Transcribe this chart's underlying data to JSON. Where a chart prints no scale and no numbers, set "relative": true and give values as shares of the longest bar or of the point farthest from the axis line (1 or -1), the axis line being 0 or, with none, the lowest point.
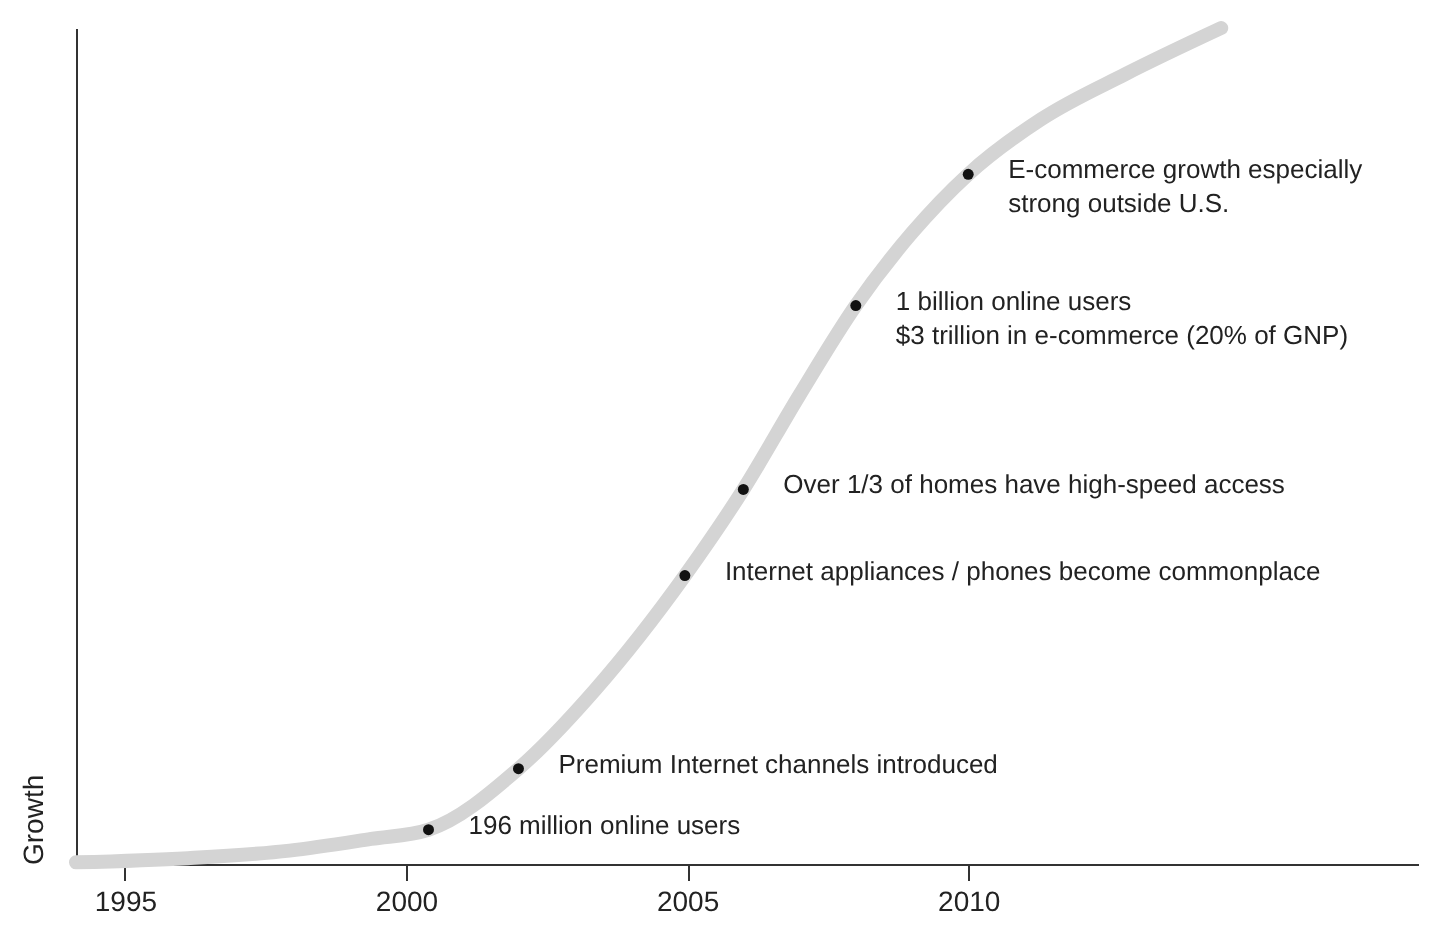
{
  "chart_data": {
    "type": "line",
    "relative": true,
    "ylabel": "Growth",
    "x": [
      1994.13,
      1996.12,
      1997.93,
      1999.38,
      2000.4,
      2002.0,
      2003.37,
      2004.96,
      2006.0,
      2007.0,
      2008.0,
      2009.0,
      2010.0,
      2011.3,
      2012.8,
      2014.5
    ],
    "series": [
      {
        "color": "#d4d4d4",
        "values": [
          0.002,
          0.007,
          0.016,
          0.03,
          0.041,
          0.114,
          0.209,
          0.345,
          0.448,
          0.561,
          0.668,
          0.755,
          0.825,
          0.891,
          0.945,
          1.0
        ]
      }
    ],
    "xlim": [
      1994.13,
      2018.0
    ],
    "xticks": [
      1995,
      2000,
      2005,
      2010
    ],
    "grid": false,
    "line_style": "solid",
    "annotations": [
      {
        "text": "196 million online users",
        "x": 2000.4,
        "y": 0.041
      },
      {
        "text": "Premium Internet channels introduced",
        "x": 2002.0,
        "y": 0.114
      },
      {
        "text": "Internet appliances / phones become commonplace",
        "x": 2004.96,
        "y": 0.345
      },
      {
        "text": "Over 1/3 of homes have high-speed access",
        "x": 2006.0,
        "y": 0.448
      },
      {
        "text": "1 billion online users\n$3 trillion in e-commerce (20% of GNP)",
        "x": 2008.0,
        "y": 0.668
      },
      {
        "text": "E-commerce growth especially\nstrong outside U.S.",
        "x": 2010.0,
        "y": 0.825
      }
    ]
  }
}
